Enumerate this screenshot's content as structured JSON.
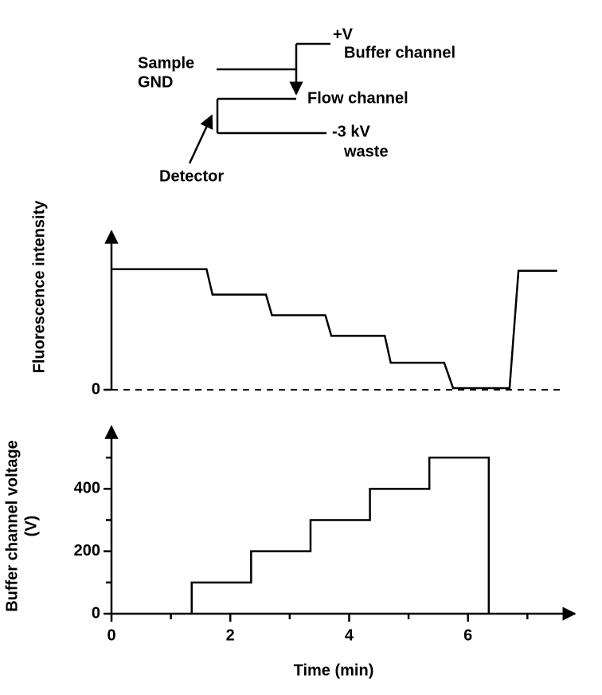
{
  "diagram": {
    "sample": "Sample",
    "gnd": "GND",
    "plus_v": "+V",
    "buffer_channel": "Buffer channel",
    "flow_channel": "Flow channel",
    "minus_kv": "-3 kV",
    "waste": "waste",
    "detector": "Detector"
  },
  "chart_data": [
    {
      "type": "line",
      "ylabel": [
        "Fluorescence intensity"
      ],
      "x": [
        0,
        1.6,
        1.7,
        2.6,
        2.7,
        3.6,
        3.7,
        4.6,
        4.7,
        5.6,
        5.75,
        6.7,
        6.85,
        7.5
      ],
      "values": [
        76,
        76,
        60,
        60,
        47,
        47,
        34,
        34,
        17,
        17,
        1,
        1,
        75,
        75
      ],
      "color": "#000000",
      "xlim": [
        0,
        7.8
      ],
      "ylim": [
        0,
        100
      ],
      "yticks": [
        0
      ],
      "grid": true
    },
    {
      "type": "line",
      "xlabel": "Time (min)",
      "ylabel": [
        "Buffer channel voltage",
        "(V)"
      ],
      "x": [
        1.35,
        1.35,
        2.35,
        2.35,
        3.35,
        3.35,
        4.35,
        4.35,
        5.35,
        5.35,
        6.35,
        6.35
      ],
      "values": [
        0,
        100,
        100,
        200,
        200,
        300,
        300,
        400,
        400,
        500,
        500,
        0
      ],
      "color": "#000000",
      "xlim": [
        0,
        7.8
      ],
      "ylim": [
        0,
        600
      ],
      "xticks": [
        0,
        2,
        4,
        6
      ],
      "xminorticks": [
        1,
        3,
        5,
        7
      ],
      "yticks": [
        0,
        200,
        400
      ],
      "yminorticks": [
        100,
        300,
        500
      ],
      "grid": false
    }
  ]
}
